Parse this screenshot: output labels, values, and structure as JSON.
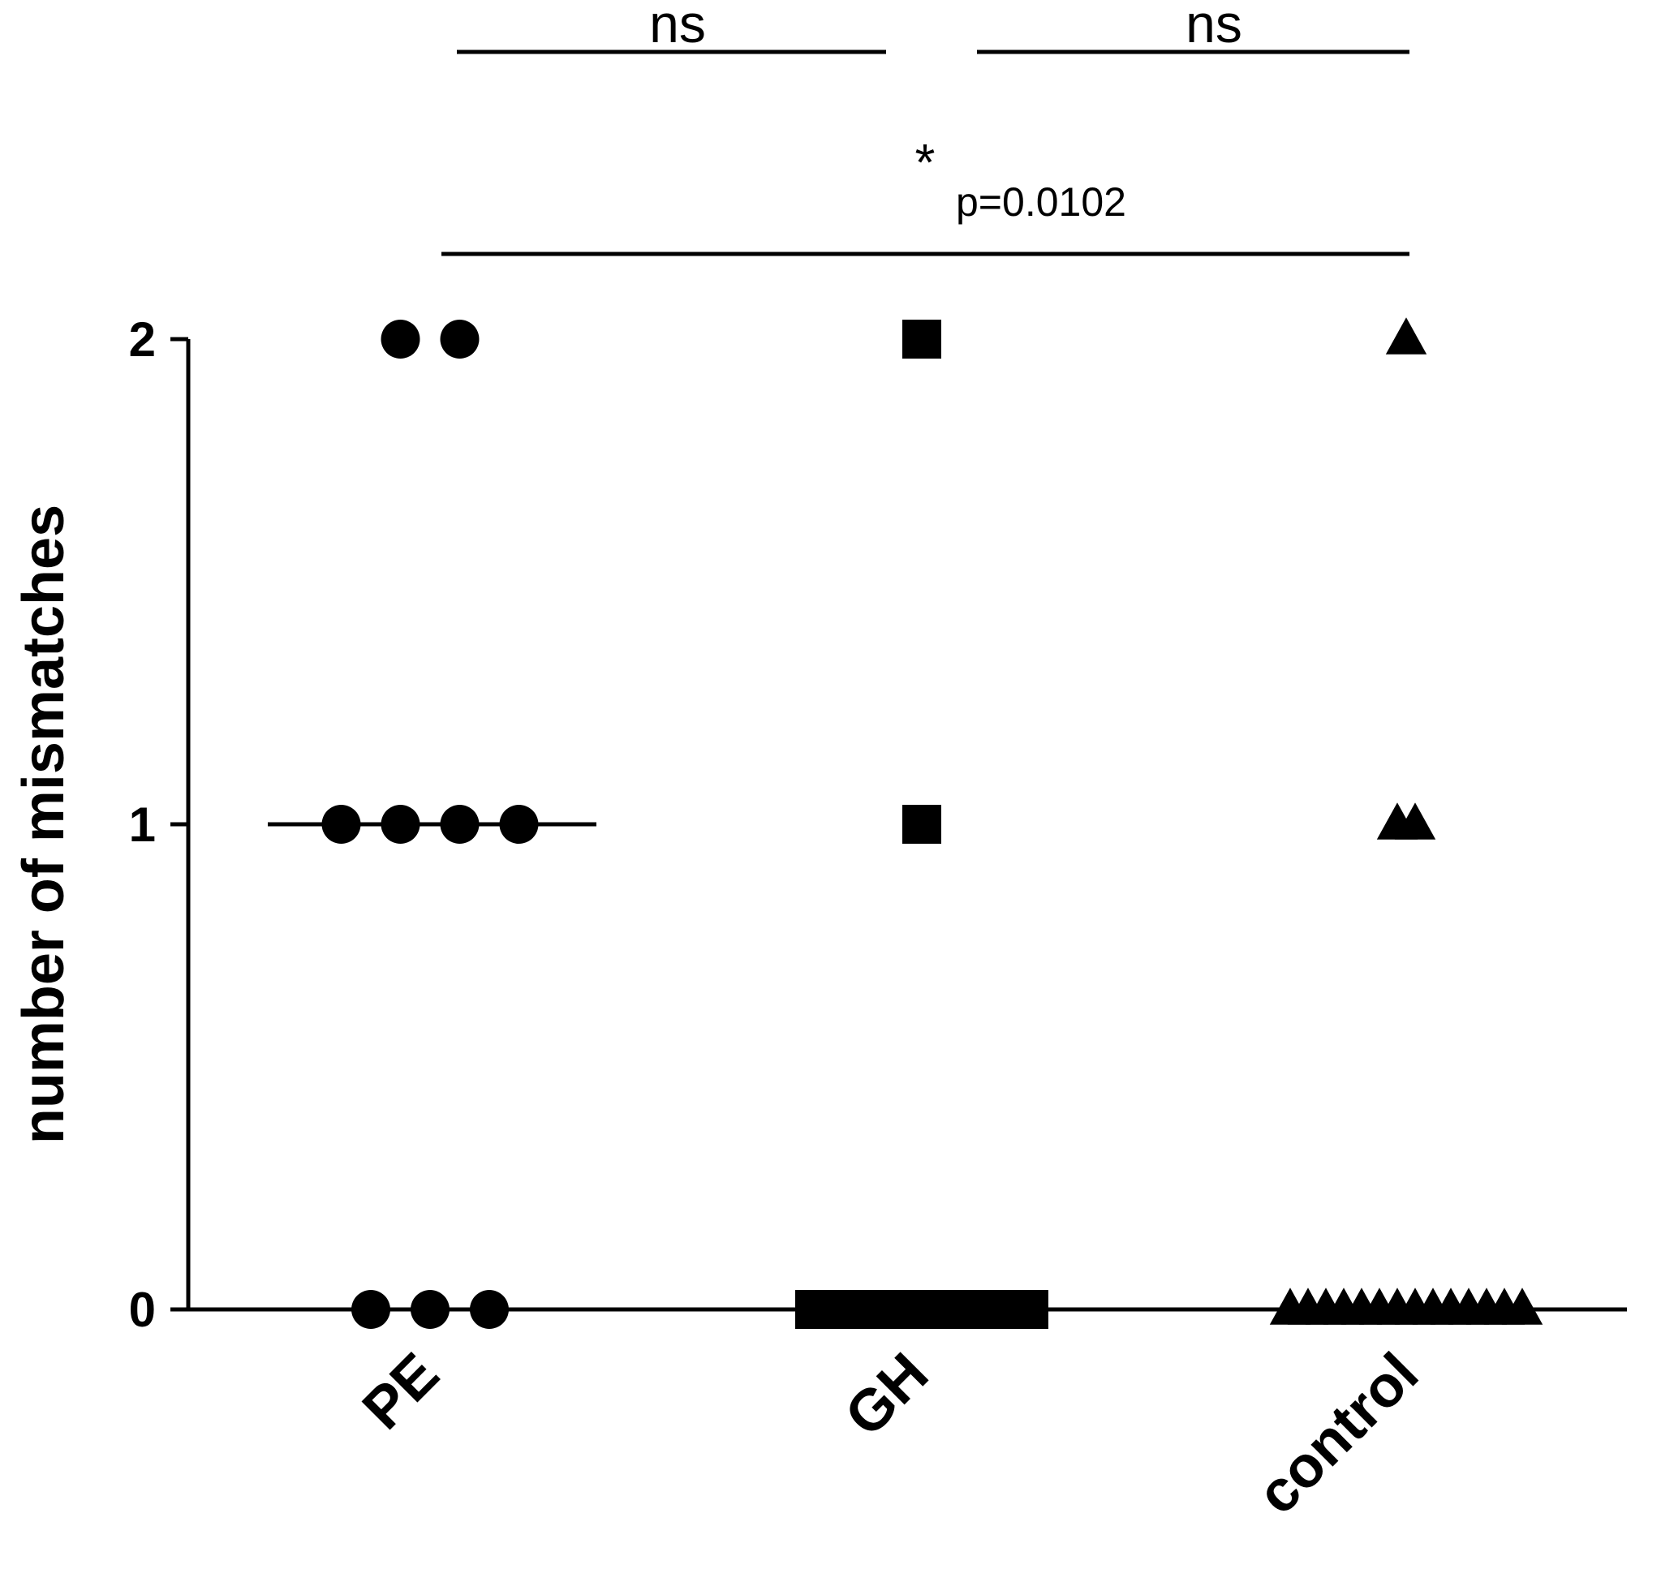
{
  "chart_data": {
    "type": "scatter",
    "ylabel": "number of mismatches",
    "xlabel": "",
    "ylim": [
      0,
      2
    ],
    "yticks": [
      "0",
      "1",
      "2"
    ],
    "categories": [
      "PE",
      "GH",
      "control"
    ],
    "series": [
      {
        "category": "PE",
        "marker": "circle",
        "values": [
          0,
          0,
          0,
          1,
          1,
          1,
          1,
          2,
          2
        ],
        "median": 1
      },
      {
        "category": "GH",
        "marker": "square",
        "values": [
          0,
          0,
          0,
          0,
          0,
          0,
          0,
          0,
          0,
          1,
          2
        ],
        "median": 0
      },
      {
        "category": "control",
        "marker": "triangle",
        "values": [
          0,
          0,
          0,
          0,
          0,
          0,
          0,
          0,
          0,
          0,
          0,
          0,
          0,
          0,
          1,
          1,
          2
        ],
        "median": 0
      }
    ],
    "comparisons": [
      {
        "from": "PE",
        "to": "GH",
        "label": "ns"
      },
      {
        "from": "GH",
        "to": "control",
        "label": "ns"
      },
      {
        "from": "PE",
        "to": "control",
        "label": "*",
        "p_label": "p=0.0102"
      }
    ],
    "grid": false,
    "legend": "none",
    "colors": {
      "marker": "#000000",
      "axis": "#000000"
    }
  }
}
